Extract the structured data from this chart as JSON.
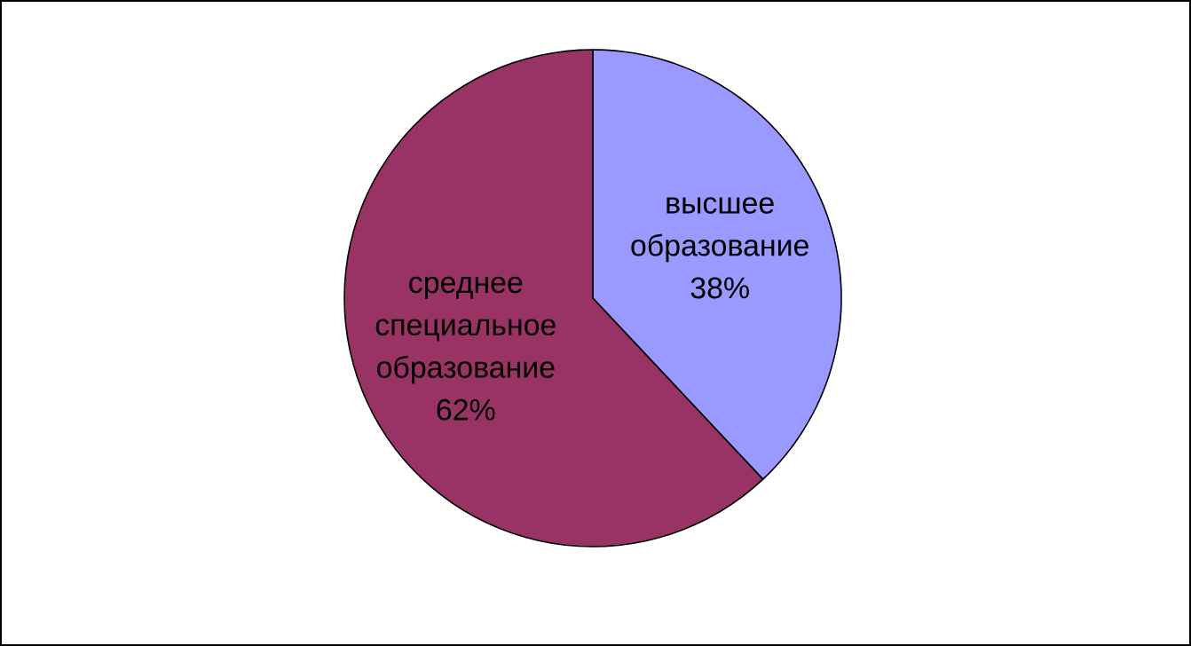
{
  "chart_data": {
    "type": "pie",
    "categories": [
      "высшее образование",
      "среднее специальное образование"
    ],
    "values": [
      38,
      62
    ],
    "value_labels": [
      "38%",
      "62%"
    ],
    "colors": [
      "#9999ff",
      "#993366"
    ]
  }
}
